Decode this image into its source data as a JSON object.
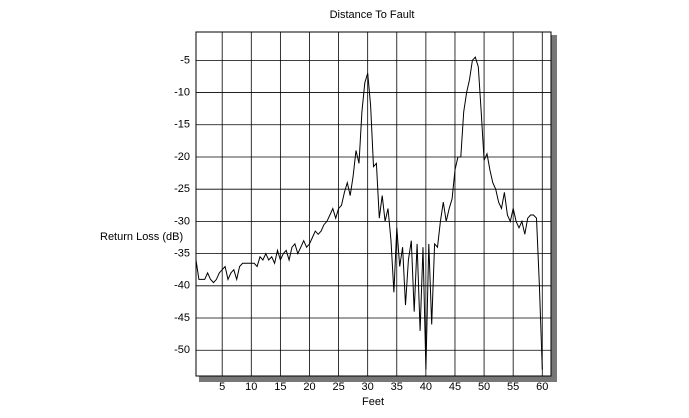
{
  "chart_data": {
    "type": "line",
    "title": "Distance To Fault",
    "x_label": "Feet",
    "y_label": "Return Loss (dB)",
    "x": [
      0.5,
      1,
      1.5,
      2,
      2.5,
      3,
      3.5,
      4,
      4.5,
      5,
      5.5,
      6,
      6.5,
      7,
      7.5,
      8,
      8.5,
      9,
      9.5,
      10,
      10.5,
      11,
      11.5,
      12,
      12.5,
      13,
      13.5,
      14,
      14.5,
      15,
      15.5,
      16,
      16.5,
      17,
      17.5,
      18,
      18.5,
      19,
      19.5,
      20,
      20.5,
      21,
      21.5,
      22,
      22.5,
      23,
      23.5,
      24,
      24.5,
      25,
      25.5,
      26,
      26.5,
      27,
      27.5,
      28,
      28.5,
      29,
      29.5,
      30,
      30.5,
      31,
      31.5,
      32,
      32.5,
      33,
      33.5,
      34,
      34.5,
      35,
      35.5,
      36,
      36.5,
      37,
      37.5,
      38,
      38.5,
      39,
      39.5,
      40,
      40.5,
      41,
      41.5,
      42,
      42.5,
      43,
      43.5,
      44,
      44.5,
      45,
      45.5,
      46,
      46.5,
      47,
      47.5,
      48,
      48.5,
      49,
      49.5,
      50,
      50.5,
      51,
      51.5,
      52,
      52.5,
      53,
      53.5,
      54,
      54.5,
      55,
      55.5,
      56,
      56.5,
      57,
      57.5,
      58,
      58.5,
      59,
      59.5,
      60
    ],
    "series": [
      {
        "name": "Return Loss",
        "color": "#000000",
        "values": [
          -36,
          -39,
          -39,
          -39,
          -38,
          -39,
          -39.5,
          -39,
          -38,
          -37.5,
          -37,
          -39,
          -38,
          -37.5,
          -39,
          -37,
          -36.5,
          -36.5,
          -36.5,
          -36.5,
          -36.5,
          -37,
          -35.5,
          -36,
          -35,
          -36,
          -35.5,
          -36.5,
          -34.5,
          -36,
          -35,
          -34.5,
          -36,
          -34,
          -33.5,
          -35,
          -34,
          -33,
          -34,
          -33.5,
          -32.5,
          -31.5,
          -32,
          -31.5,
          -30.5,
          -30,
          -29,
          -28,
          -29.5,
          -28,
          -27.5,
          -25.5,
          -24,
          -26,
          -23,
          -19,
          -21,
          -13,
          -8.5,
          -7,
          -12,
          -21.5,
          -21,
          -29.5,
          -26,
          -30,
          -28,
          -33,
          -41,
          -31,
          -37,
          -34,
          -43,
          -36,
          -33,
          -44,
          -33.5,
          -47,
          -34,
          -53,
          -33.5,
          -46,
          -33.5,
          -34,
          -30,
          -27,
          -30,
          -28,
          -26.5,
          -22,
          -20,
          -20,
          -13,
          -10,
          -8,
          -5,
          -4.5,
          -6,
          -13,
          -20.5,
          -19.5,
          -22,
          -24,
          -25,
          -27,
          -28,
          -25.5,
          -29,
          -30,
          -28,
          -30,
          -31,
          -30,
          -32,
          -29.5,
          -29,
          -29,
          -29.5,
          -40,
          -53
        ]
      }
    ],
    "xlim": [
      0.5,
      61.5
    ],
    "ylim": [
      -54,
      -0.6
    ],
    "xticks": [
      5,
      10,
      15,
      20,
      25,
      30,
      35,
      40,
      45,
      50,
      55,
      60
    ],
    "yticks": [
      -5,
      -10,
      -15,
      -20,
      -25,
      -30,
      -35,
      -40,
      -45,
      -50
    ],
    "grid": true
  }
}
